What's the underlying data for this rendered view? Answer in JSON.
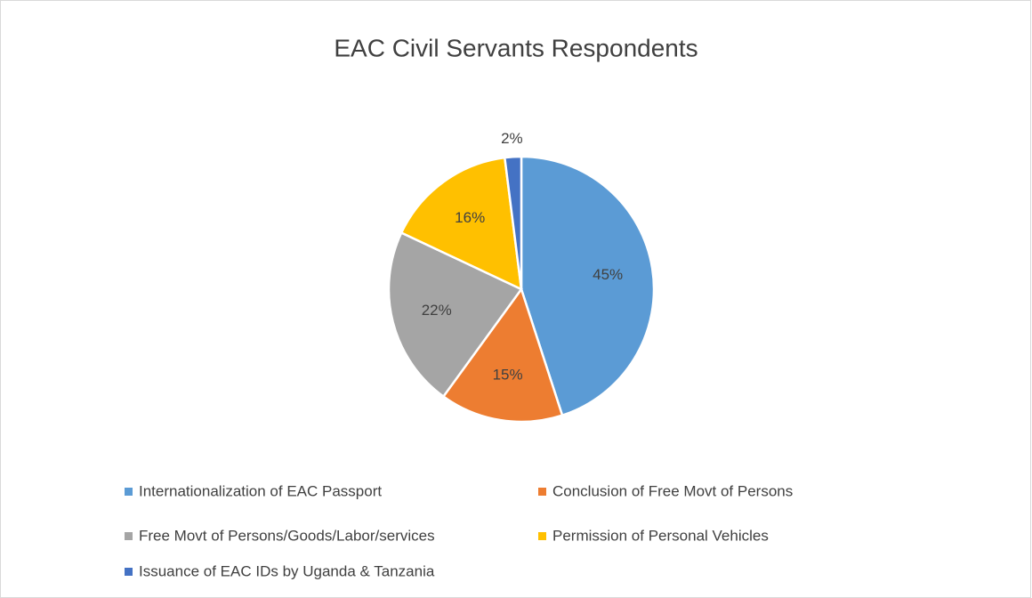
{
  "chart_data": {
    "type": "pie",
    "title": "EAC Civil Servants Respondents",
    "categories": [
      "Internationalization of EAC Passport",
      "Conclusion of Free Movt of Persons",
      "Free Movt of Persons/Goods/Labor/services",
      "Permission of Personal Vehicles",
      "Issuance of EAC IDs by Uganda & Tanzania"
    ],
    "values": [
      45,
      15,
      22,
      16,
      2
    ],
    "value_labels": [
      "45%",
      "15%",
      "22%",
      "16%",
      "2%"
    ],
    "colors": [
      "#5b9bd5",
      "#ed7d31",
      "#a5a5a5",
      "#ffc000",
      "#4472c4"
    ],
    "legend": "bottom"
  }
}
